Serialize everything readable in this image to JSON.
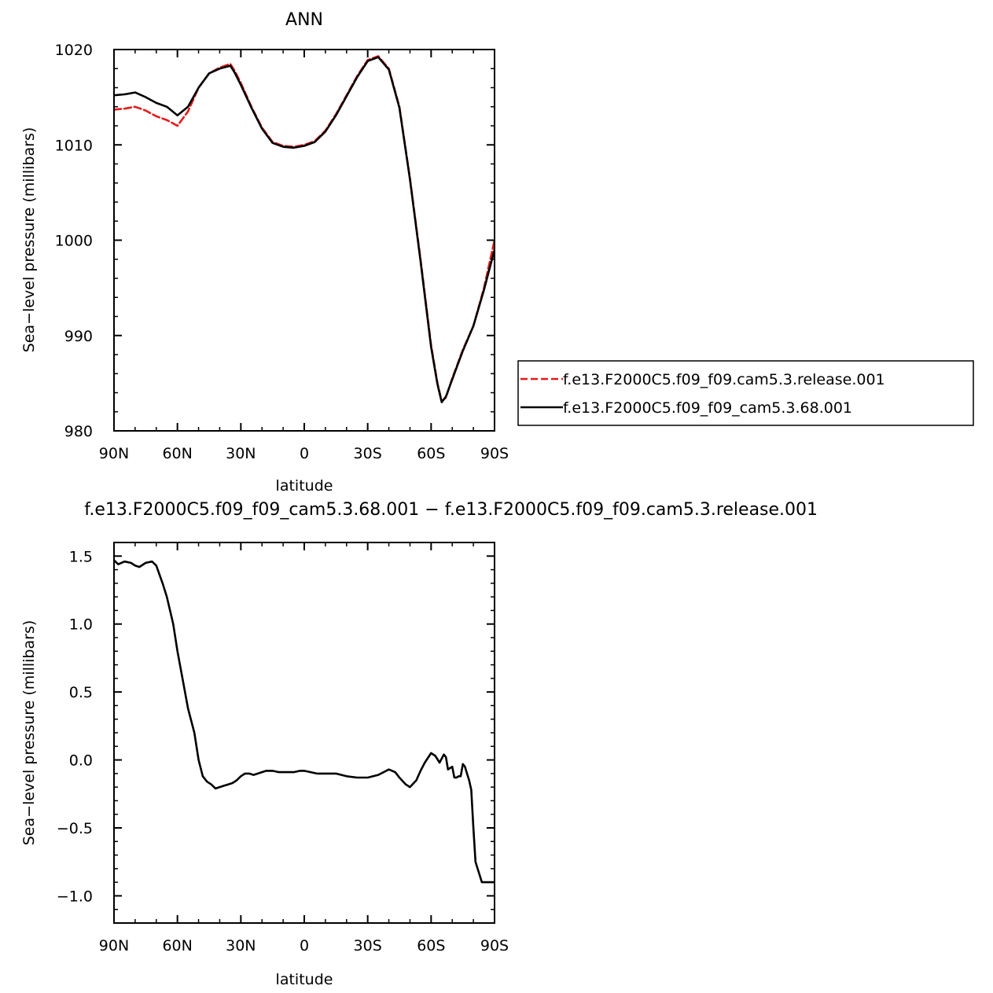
{
  "chart_data": [
    {
      "type": "line",
      "title": "ANN",
      "xlabel": "latitude",
      "ylabel": "Sea−level pressure (millibars)",
      "xlim": [
        90,
        -90
      ],
      "ylim": [
        980,
        1020
      ],
      "xticks": [
        {
          "value": 90,
          "label": "90N"
        },
        {
          "value": 60,
          "label": "60N"
        },
        {
          "value": 30,
          "label": "30N"
        },
        {
          "value": 0,
          "label": "0"
        },
        {
          "value": -30,
          "label": "30S"
        },
        {
          "value": -60,
          "label": "60S"
        },
        {
          "value": -90,
          "label": "90S"
        }
      ],
      "yticks": [
        {
          "value": 980,
          "label": "980"
        },
        {
          "value": 990,
          "label": "990"
        },
        {
          "value": 1000,
          "label": "1000"
        },
        {
          "value": 1010,
          "label": "1010"
        },
        {
          "value": 1020,
          "label": "1020"
        }
      ],
      "legend_position": "right",
      "series": [
        {
          "name": "f.e13.F2000C5.f09_f09.cam5.3.release.001",
          "color": "#e41a1c",
          "dash": "dashed",
          "x": [
            90,
            85,
            80,
            75,
            70,
            65,
            60,
            55,
            50,
            45,
            40,
            35,
            33,
            30,
            25,
            20,
            15,
            10,
            5,
            0,
            -5,
            -10,
            -15,
            -20,
            -25,
            -30,
            -35,
            -40,
            -45,
            -50,
            -55,
            -60,
            -63,
            -65,
            -67,
            -70,
            -75,
            -80,
            -85,
            -90
          ],
          "y": [
            1013.7,
            1013.8,
            1014.0,
            1013.6,
            1013.0,
            1012.6,
            1012.0,
            1013.5,
            1016.0,
            1017.5,
            1018.1,
            1018.5,
            1017.8,
            1016.5,
            1014.0,
            1011.8,
            1010.3,
            1009.9,
            1009.8,
            1010.0,
            1010.4,
            1011.5,
            1013.2,
            1015.2,
            1017.2,
            1018.9,
            1019.3,
            1018.0,
            1014.0,
            1006.5,
            998.0,
            989.0,
            985.0,
            983.1,
            983.5,
            985.5,
            988.5,
            991.0,
            995.0,
            1000.0
          ]
        },
        {
          "name": "f.e13.F2000C5.f09_f09_cam5.3.68.001",
          "color": "#000000",
          "dash": "solid",
          "x": [
            90,
            85,
            80,
            75,
            70,
            65,
            60,
            55,
            50,
            45,
            40,
            35,
            33,
            30,
            25,
            20,
            15,
            10,
            5,
            0,
            -5,
            -10,
            -15,
            -20,
            -25,
            -30,
            -35,
            -40,
            -45,
            -50,
            -55,
            -60,
            -63,
            -65,
            -67,
            -70,
            -75,
            -80,
            -85,
            -90
          ],
          "y": [
            1015.2,
            1015.3,
            1015.5,
            1015.0,
            1014.4,
            1014.0,
            1013.1,
            1014.0,
            1016.0,
            1017.5,
            1018.0,
            1018.3,
            1017.6,
            1016.3,
            1013.9,
            1011.7,
            1010.2,
            1009.8,
            1009.7,
            1009.9,
            1010.3,
            1011.4,
            1013.1,
            1015.1,
            1017.1,
            1018.8,
            1019.2,
            1017.9,
            1013.9,
            1006.4,
            997.8,
            988.8,
            984.9,
            983.0,
            983.6,
            985.4,
            988.4,
            991.0,
            994.8,
            999.0
          ]
        }
      ]
    },
    {
      "type": "line",
      "title": "f.e13.F2000C5.f09_f09_cam5.3.68.001 − f.e13.F2000C5.f09_f09.cam5.3.release.001",
      "xlabel": "latitude",
      "ylabel": "Sea−level pressure (millibars)",
      "xlim": [
        90,
        -90
      ],
      "ylim": [
        -1.2,
        1.6
      ],
      "xticks": [
        {
          "value": 90,
          "label": "90N"
        },
        {
          "value": 60,
          "label": "60N"
        },
        {
          "value": 30,
          "label": "30N"
        },
        {
          "value": 0,
          "label": "0"
        },
        {
          "value": -30,
          "label": "30S"
        },
        {
          "value": -60,
          "label": "60S"
        },
        {
          "value": -90,
          "label": "90S"
        }
      ],
      "yticks": [
        {
          "value": 1.5,
          "label": "1.5"
        },
        {
          "value": 1.0,
          "label": "1.0"
        },
        {
          "value": 0.5,
          "label": "0.5"
        },
        {
          "value": 0.0,
          "label": "0.0"
        },
        {
          "value": -0.5,
          "label": "−0.5"
        },
        {
          "value": -1.0,
          "label": "−1.0"
        }
      ],
      "series": [
        {
          "color": "#000000",
          "dash": "solid",
          "x": [
            90,
            88,
            85,
            82,
            80,
            78,
            75,
            72,
            70,
            67,
            65,
            62,
            60,
            57,
            55,
            52,
            50,
            48,
            46,
            44,
            42,
            40,
            38,
            36,
            34,
            32,
            30,
            28,
            26,
            24,
            22,
            20,
            18,
            15,
            12,
            10,
            8,
            5,
            2,
            0,
            -3,
            -6,
            -10,
            -15,
            -20,
            -25,
            -30,
            -35,
            -40,
            -43,
            -45,
            -48,
            -50,
            -53,
            -55,
            -57,
            -60,
            -62,
            -64,
            -66,
            -67,
            -68,
            -69,
            -70,
            -71,
            -72,
            -73,
            -74,
            -75,
            -76,
            -77,
            -78,
            -79,
            -80,
            -81,
            -82,
            -83,
            -84,
            -85,
            -86,
            -87,
            -88,
            -89,
            -90
          ],
          "y": [
            1.47,
            1.44,
            1.46,
            1.45,
            1.43,
            1.42,
            1.45,
            1.46,
            1.43,
            1.3,
            1.2,
            1.0,
            0.8,
            0.55,
            0.38,
            0.2,
            0.0,
            -0.12,
            -0.16,
            -0.18,
            -0.21,
            -0.2,
            -0.19,
            -0.18,
            -0.17,
            -0.15,
            -0.12,
            -0.1,
            -0.1,
            -0.11,
            -0.1,
            -0.09,
            -0.08,
            -0.08,
            -0.09,
            -0.09,
            -0.09,
            -0.09,
            -0.08,
            -0.08,
            -0.09,
            -0.1,
            -0.1,
            -0.1,
            -0.12,
            -0.13,
            -0.13,
            -0.11,
            -0.07,
            -0.09,
            -0.13,
            -0.18,
            -0.2,
            -0.15,
            -0.08,
            -0.02,
            0.05,
            0.03,
            -0.02,
            0.04,
            0.02,
            -0.07,
            -0.06,
            -0.05,
            -0.13,
            -0.13,
            -0.12,
            -0.12,
            -0.03,
            -0.05,
            -0.1,
            -0.15,
            -0.22,
            -0.5,
            -0.75,
            -0.8,
            -0.85,
            -0.9,
            -0.9,
            -0.9,
            -0.9,
            -0.9,
            -0.9,
            -0.9
          ]
        }
      ]
    }
  ]
}
